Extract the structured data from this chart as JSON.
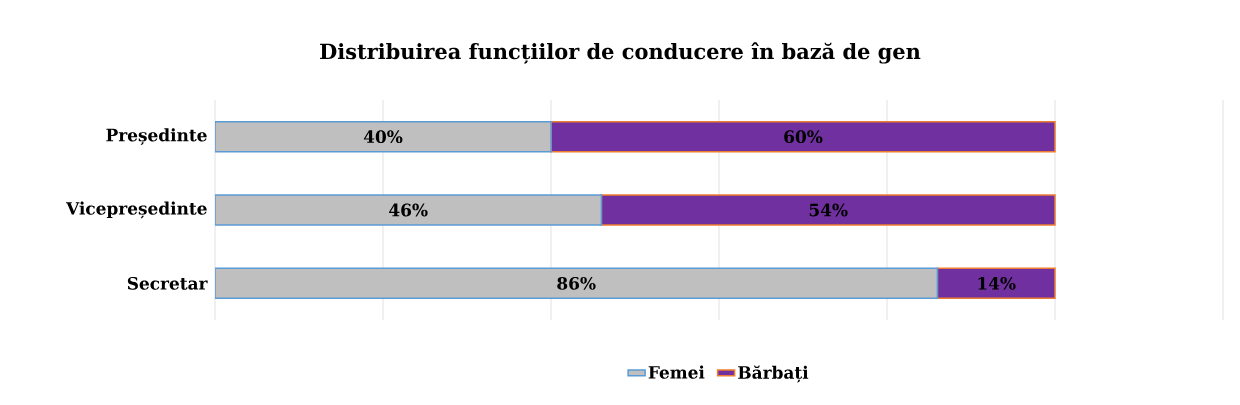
{
  "chart_data": {
    "type": "bar",
    "orientation": "horizontal",
    "stacked": true,
    "title": "Distribuirea  funcțiilor  de conducere în bază de gen",
    "categories": [
      "Președinte",
      "Vicepreședinte",
      "Secretar"
    ],
    "series": [
      {
        "name": "Femei",
        "color": "#bfbfbf",
        "values": [
          40,
          46,
          86
        ],
        "value_labels": [
          "40%",
          "46%",
          "86%"
        ]
      },
      {
        "name": "Bărbați",
        "color": "#7030a0",
        "values": [
          60,
          54,
          14
        ],
        "value_labels": [
          "60%",
          "54%",
          "14%"
        ]
      }
    ],
    "xlim": [
      0,
      120
    ],
    "xticks": [
      {
        "value": 0,
        "label": null
      },
      {
        "value": 20,
        "label": null
      },
      {
        "value": 40,
        "label": null
      },
      {
        "value": 60,
        "label": null
      },
      {
        "value": 80,
        "label": null
      },
      {
        "value": 100,
        "label": null
      },
      {
        "value": 120,
        "label": null
      }
    ],
    "tick_labels": "y",
    "grid": "x",
    "legend": "bottom"
  }
}
